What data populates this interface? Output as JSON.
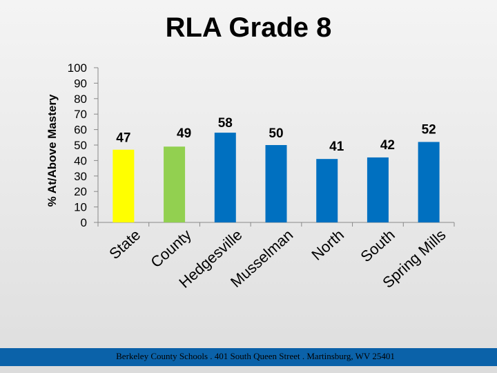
{
  "chart_data": {
    "type": "bar",
    "title": "RLA Grade 8",
    "ylabel": "% At/Above Mastery",
    "xlabel": "",
    "ylim": [
      0,
      100
    ],
    "yticks": [
      0,
      10,
      20,
      30,
      40,
      50,
      60,
      70,
      80,
      90,
      100
    ],
    "categories": [
      "State",
      "County",
      "Hedgesville",
      "Musselman",
      "North",
      "South",
      "Spring Mills"
    ],
    "values": [
      47,
      49,
      58,
      50,
      41,
      42,
      52
    ],
    "bar_colors": [
      "#ffff00",
      "#92d050",
      "#0070c0",
      "#0070c0",
      "#0070c0",
      "#0070c0",
      "#0070c0"
    ],
    "grid": false,
    "legend": "none"
  },
  "footer": {
    "text": "Berkeley County Schools . 401 South Queen Street . Martinsburg, WV  25401",
    "color": "#0b62a9"
  }
}
